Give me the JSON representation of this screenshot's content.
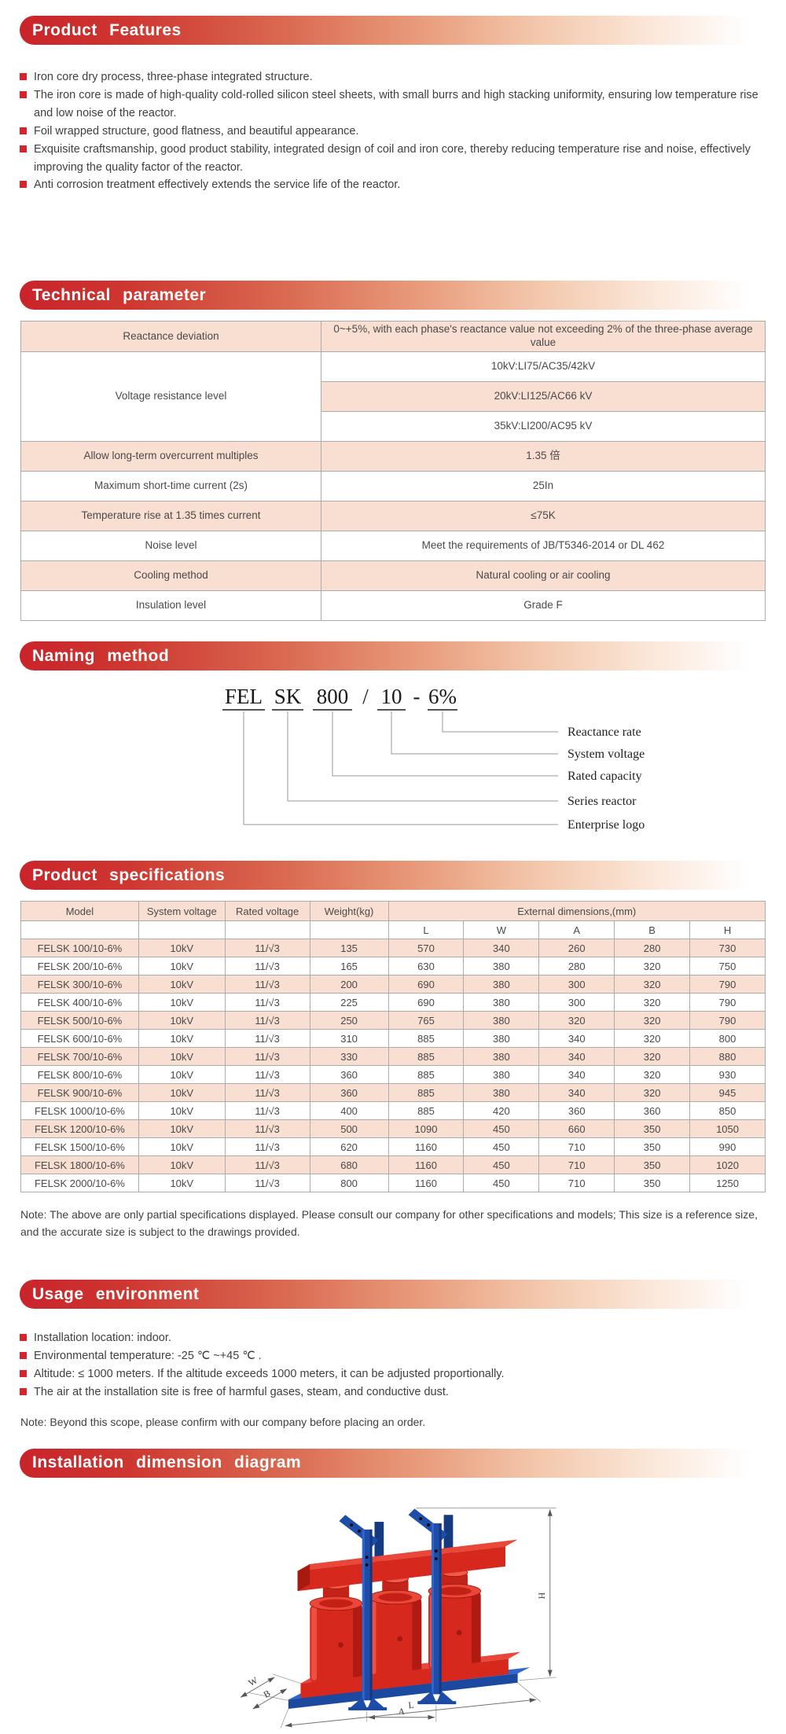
{
  "features": {
    "title": "Product Features",
    "items": [
      "Iron core dry process, three-phase integrated structure.",
      "The iron core is made of high-quality cold-rolled silicon steel sheets, with small burrs and high stacking uniformity, ensuring low temperature rise and low noise of the reactor.",
      "Foil wrapped structure, good flatness, and beautiful appearance.",
      "Exquisite craftsmanship, good product stability, integrated design of coil and iron core, thereby reducing temperature rise and noise, effectively improving the quality factor of the reactor.",
      "Anti corrosion treatment effectively extends the service life of the reactor."
    ]
  },
  "technical": {
    "title": "Technical parameter",
    "rows": [
      {
        "label": "Reactance deviation",
        "value": "0~+5%, with each phase's reactance value not exceeding 2% of the three-phase average value"
      },
      {
        "label": "Voltage resistance level",
        "values": [
          "10kV:LI75/AC35/42kV",
          "20kV:LI125/AC66 kV",
          "35kV:LI200/AC95 kV"
        ]
      },
      {
        "label": "Allow long-term overcurrent multiples",
        "value": "1.35 倍"
      },
      {
        "label": "Maximum short-time current (2s)",
        "value": "25In"
      },
      {
        "label": "Temperature rise at 1.35 times current",
        "value": "≤75K"
      },
      {
        "label": "Noise level",
        "value": "Meet the requirements of JB/T5346-2014 or DL 462"
      },
      {
        "label": "Cooling method",
        "value": "Natural cooling or air cooling"
      },
      {
        "label": "Insulation level",
        "value": "Grade F"
      }
    ]
  },
  "naming": {
    "title": "Naming method",
    "code": [
      "FEL",
      "SK",
      "800",
      "/",
      "10",
      "-",
      "6%"
    ],
    "labels": [
      "Reactance rate",
      "System voltage",
      "Rated capacity",
      "Series reactor",
      "Enterprise logo"
    ]
  },
  "specs": {
    "title": "Product specifications",
    "headers": [
      "Model",
      "System voltage",
      "Rated voltage",
      "Weight(kg)"
    ],
    "dims_header": "External dimensions,(mm)",
    "dim_cols": [
      "L",
      "W",
      "A",
      "B",
      "H"
    ],
    "rows": [
      [
        "FELSK 100/10-6%",
        "10kV",
        "11/√3",
        "135",
        "570",
        "340",
        "260",
        "280",
        "730"
      ],
      [
        "FELSK 200/10-6%",
        "10kV",
        "11/√3",
        "165",
        "630",
        "380",
        "280",
        "320",
        "750"
      ],
      [
        "FELSK 300/10-6%",
        "10kV",
        "11/√3",
        "200",
        "690",
        "380",
        "300",
        "320",
        "790"
      ],
      [
        "FELSK 400/10-6%",
        "10kV",
        "11/√3",
        "225",
        "690",
        "380",
        "300",
        "320",
        "790"
      ],
      [
        "FELSK 500/10-6%",
        "10kV",
        "11/√3",
        "250",
        "765",
        "380",
        "320",
        "320",
        "790"
      ],
      [
        "FELSK 600/10-6%",
        "10kV",
        "11/√3",
        "310",
        "885",
        "380",
        "340",
        "320",
        "800"
      ],
      [
        "FELSK 700/10-6%",
        "10kV",
        "11/√3",
        "330",
        "885",
        "380",
        "340",
        "320",
        "880"
      ],
      [
        "FELSK 800/10-6%",
        "10kV",
        "11/√3",
        "360",
        "885",
        "380",
        "340",
        "320",
        "930"
      ],
      [
        "FELSK 900/10-6%",
        "10kV",
        "11/√3",
        "360",
        "885",
        "380",
        "340",
        "320",
        "945"
      ],
      [
        "FELSK 1000/10-6%",
        "10kV",
        "11/√3",
        "400",
        "885",
        "420",
        "360",
        "360",
        "850"
      ],
      [
        "FELSK 1200/10-6%",
        "10kV",
        "11/√3",
        "500",
        "1090",
        "450",
        "660",
        "350",
        "1050"
      ],
      [
        "FELSK 1500/10-6%",
        "10kV",
        "11/√3",
        "620",
        "1160",
        "450",
        "710",
        "350",
        "990"
      ],
      [
        "FELSK 1800/10-6%",
        "10kV",
        "11/√3",
        "680",
        "1160",
        "450",
        "710",
        "350",
        "1020"
      ],
      [
        "FELSK 2000/10-6%",
        "10kV",
        "11/√3",
        "800",
        "1160",
        "450",
        "710",
        "350",
        "1250"
      ]
    ],
    "note": "Note: The above are only partial specifications displayed. Please consult our company for other specifications and models; This size is a reference size, and the accurate size is subject to the drawings provided."
  },
  "usage": {
    "title": "Usage environment",
    "items": [
      "Installation location: indoor.",
      "Environmental temperature: -25 ℃ ~+45 ℃ .",
      "Altitude: ≤ 1000 meters. If the altitude exceeds 1000 meters, it can be adjusted proportionally.",
      "The air at the installation site is free of harmful gases, steam, and conductive dust."
    ],
    "note": "Note: Beyond this scope, please confirm with our company before placing an order."
  },
  "installation": {
    "title": "Installation dimension diagram",
    "dims": {
      "h": "H",
      "a": "A",
      "l": "L",
      "w": "W",
      "b": "B"
    }
  },
  "colors": {
    "accent_red": "#c9242b",
    "bullet_red": "#d8232a",
    "row_pink": "#f9ded2",
    "drawing_red": "#d6281d",
    "drawing_blue": "#1d4da8"
  }
}
